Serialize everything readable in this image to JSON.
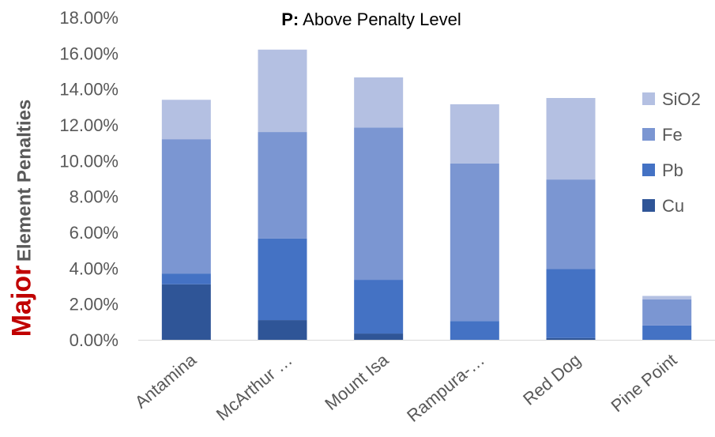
{
  "chart_data": {
    "type": "bar",
    "stacked": true,
    "title_prefix": "P:",
    "title_rest": "Above Penalty Level",
    "ylabel_major": "Major",
    "ylabel_rest": "Element Penalties",
    "xlabel": "",
    "ylim": [
      0,
      18
    ],
    "yticks": [
      "0.00%",
      "2.00%",
      "4.00%",
      "6.00%",
      "8.00%",
      "10.00%",
      "12.00%",
      "14.00%",
      "16.00%",
      "18.00%"
    ],
    "categories": [
      "Antamina",
      "McArthur …",
      "Mount Isa",
      "Rampura-…",
      "Red Dog",
      "Pine Point"
    ],
    "series": [
      {
        "name": "Cu",
        "color": "#2f5597",
        "values": [
          3.1,
          1.1,
          0.35,
          0.0,
          0.1,
          0.0
        ]
      },
      {
        "name": "Pb",
        "color": "#4472c4",
        "values": [
          0.6,
          4.55,
          3.0,
          1.05,
          3.85,
          0.8
        ]
      },
      {
        "name": "Fe",
        "color": "#7b96d2",
        "values": [
          7.5,
          5.95,
          8.5,
          8.8,
          5.0,
          1.45
        ]
      },
      {
        "name": "SiO2",
        "color": "#b4c0e2",
        "values": [
          2.2,
          4.6,
          2.8,
          3.3,
          4.55,
          0.2
        ]
      }
    ],
    "legend_position": "right",
    "legend_order": [
      "SiO2",
      "Fe",
      "Pb",
      "Cu"
    ],
    "grid": false
  }
}
